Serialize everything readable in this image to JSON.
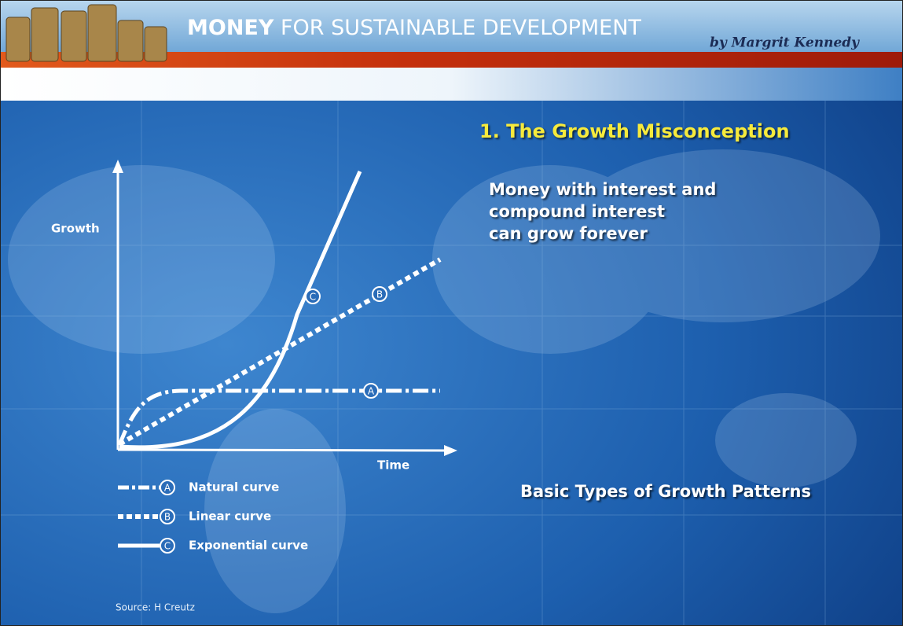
{
  "header": {
    "title_bold": "MONEY",
    "title_rest": "FOR SUSTAINABLE DEVELOPMENT",
    "byline": "by Margrit Kennedy"
  },
  "slide": {
    "title": "1. The Growth Misconception",
    "statement": [
      "Money with interest  and",
      "compound interest",
      "can grow forever"
    ],
    "caption": "Basic Types of Growth Patterns",
    "source": "Source: H Creutz"
  },
  "diagram": {
    "y_axis_label": "Growth",
    "x_axis_label": "Time",
    "markers": [
      "A",
      "B",
      "C"
    ],
    "legend": [
      {
        "marker": "A",
        "label": "Natural curve"
      },
      {
        "marker": "B",
        "label": "Linear curve"
      },
      {
        "marker": "C",
        "label": "Exponential curve"
      }
    ]
  }
}
